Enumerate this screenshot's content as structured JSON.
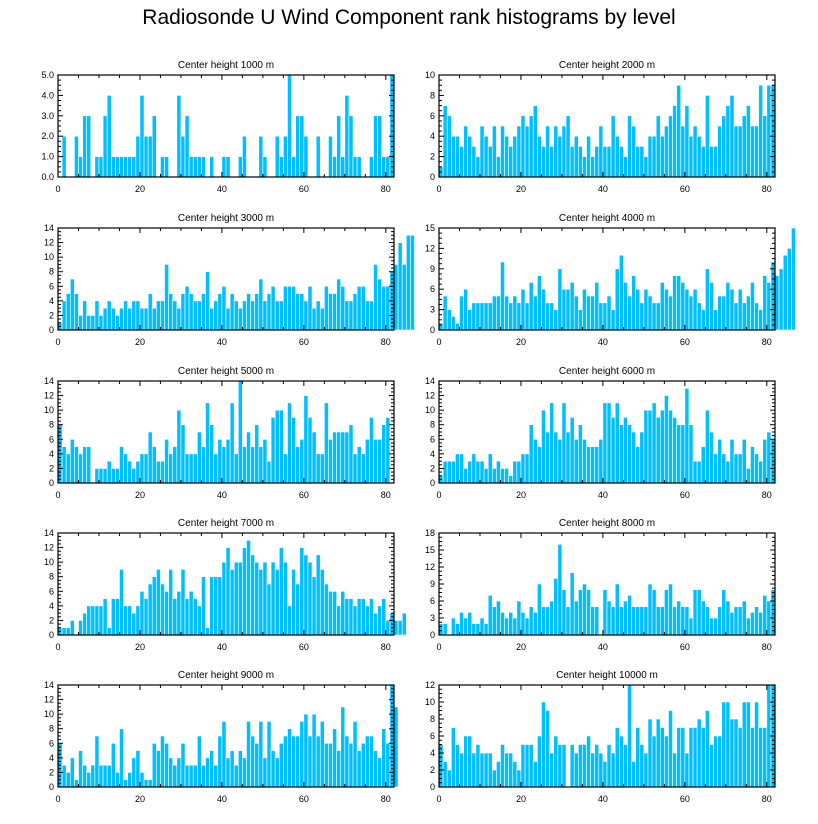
{
  "title": "Radiosonde U Wind Component rank histograms by level",
  "colors": {
    "bar": "#00bfff",
    "bar_edge": "#ffffff",
    "axis": "#000000"
  },
  "chart_data": [
    {
      "type": "bar",
      "title": "Center height 1000 m",
      "xlabel": "",
      "ylabel": "",
      "xlim": [
        0,
        82
      ],
      "ylim": [
        0,
        5
      ],
      "xticks": [
        0,
        20,
        40,
        60,
        80
      ],
      "yticks": [
        0,
        1,
        2,
        3,
        4,
        5
      ],
      "ytick_labels": [
        "0.0",
        "1.0",
        "2.0",
        "3.0",
        "4.0",
        "5.0"
      ],
      "values": [
        0,
        2,
        0,
        0,
        2,
        1,
        3,
        3,
        0,
        1,
        1,
        3,
        4,
        1,
        1,
        1,
        1,
        1,
        1,
        2,
        4,
        2,
        2,
        3,
        0,
        1,
        1,
        0,
        0,
        4,
        2,
        3,
        1,
        1,
        1,
        1,
        0,
        1,
        0,
        0,
        1,
        1,
        0,
        0,
        1,
        2,
        0,
        0,
        0,
        2,
        1,
        0,
        0,
        2,
        1,
        2,
        5,
        1,
        3,
        3,
        2,
        0,
        0,
        2,
        0,
        0,
        2,
        1,
        3,
        1,
        4,
        3,
        1,
        1,
        0,
        0,
        1,
        3,
        3,
        1,
        1,
        5
      ]
    },
    {
      "type": "bar",
      "title": "Center height 2000 m",
      "xlabel": "",
      "ylabel": "",
      "xlim": [
        0,
        82
      ],
      "ylim": [
        0,
        10
      ],
      "xticks": [
        0,
        20,
        40,
        60,
        80
      ],
      "yticks": [
        0,
        2,
        4,
        6,
        8,
        10
      ],
      "ytick_labels": [
        "0",
        "2",
        "4",
        "6",
        "8",
        "10"
      ],
      "values": [
        1,
        7,
        6,
        4,
        4,
        3,
        5,
        4,
        3,
        2,
        5,
        4,
        3,
        5,
        2,
        5,
        4,
        3,
        4,
        5,
        6,
        5,
        6,
        7,
        4,
        3,
        5,
        3,
        5,
        4,
        5,
        6,
        3,
        4,
        3,
        2,
        4,
        2,
        3,
        5,
        3,
        3,
        6,
        4,
        3,
        2,
        6,
        5,
        3,
        3,
        2,
        4,
        4,
        6,
        4,
        5,
        6,
        7,
        9,
        5,
        7,
        4,
        5,
        4,
        3,
        8,
        3,
        3,
        5,
        6,
        7,
        8,
        5,
        5,
        6,
        7,
        5,
        5,
        9,
        6,
        9,
        9
      ]
    },
    {
      "type": "bar",
      "title": "Center height 3000 m",
      "xlabel": "",
      "ylabel": "",
      "xlim": [
        0,
        82
      ],
      "ylim": [
        0,
        14
      ],
      "xticks": [
        0,
        20,
        40,
        60,
        80
      ],
      "yticks": [
        0,
        2,
        4,
        6,
        8,
        10,
        12,
        14
      ],
      "ytick_labels": [
        "0",
        "2",
        "4",
        "6",
        "8",
        "10",
        "12",
        "14"
      ],
      "values": [
        1,
        4,
        5,
        7,
        5,
        2,
        4,
        2,
        2,
        4,
        2,
        3,
        4,
        3,
        2,
        3,
        4,
        3,
        4,
        4,
        3,
        3,
        5,
        3,
        4,
        4,
        9,
        5,
        4,
        3,
        5,
        6,
        5,
        4,
        4,
        5,
        8,
        3,
        4,
        5,
        6,
        3,
        5,
        4,
        3,
        4,
        5,
        4,
        5,
        7,
        4,
        5,
        6,
        4,
        4,
        6,
        6,
        6,
        5,
        5,
        4,
        6,
        3,
        4,
        3,
        6,
        5,
        5,
        7,
        6,
        4,
        4,
        5,
        6,
        6,
        4,
        4,
        9,
        7,
        6,
        6,
        8,
        9,
        12,
        9,
        13,
        13
      ]
    },
    {
      "type": "bar",
      "title": "Center height 4000 m",
      "xlabel": "",
      "ylabel": "",
      "xlim": [
        0,
        82
      ],
      "ylim": [
        0,
        15
      ],
      "xticks": [
        0,
        20,
        40,
        60,
        80
      ],
      "yticks": [
        0,
        3,
        6,
        9,
        12,
        15
      ],
      "ytick_labels": [
        "0",
        "3",
        "6",
        "9",
        "12",
        "15"
      ],
      "values": [
        1,
        5,
        3,
        2,
        1,
        5,
        6,
        3,
        4,
        4,
        4,
        4,
        4,
        5,
        5,
        10,
        5,
        4,
        5,
        4,
        6,
        4,
        7,
        5,
        8,
        6,
        4,
        4,
        3,
        9,
        6,
        6,
        7,
        5,
        3,
        6,
        5,
        5,
        7,
        4,
        4,
        5,
        3,
        9,
        11,
        7,
        5,
        8,
        6,
        4,
        6,
        5,
        4,
        4,
        7,
        6,
        5,
        8,
        8,
        7,
        6,
        5,
        6,
        4,
        3,
        9,
        7,
        3,
        5,
        5,
        7,
        6,
        4,
        6,
        4,
        5,
        7,
        4,
        3,
        8,
        7,
        10,
        8,
        9,
        11,
        12,
        15
      ]
    },
    {
      "type": "bar",
      "title": "Center height 5000 m",
      "xlabel": "",
      "ylabel": "",
      "xlim": [
        0,
        82
      ],
      "ylim": [
        0,
        14
      ],
      "xticks": [
        0,
        20,
        40,
        60,
        80
      ],
      "yticks": [
        0,
        2,
        4,
        6,
        8,
        10,
        12,
        14
      ],
      "ytick_labels": [
        "0",
        "2",
        "4",
        "6",
        "8",
        "10",
        "12",
        "14"
      ],
      "values": [
        8,
        5,
        4,
        6,
        5,
        4,
        5,
        5,
        0,
        2,
        2,
        2,
        3,
        2,
        2,
        5,
        4,
        3,
        2,
        3,
        4,
        4,
        7,
        5,
        3,
        3,
        6,
        4,
        5,
        10,
        8,
        4,
        4,
        4,
        7,
        5,
        11,
        8,
        4,
        6,
        5,
        6,
        11,
        4,
        14,
        5,
        7,
        5,
        8,
        5,
        6,
        3,
        9,
        10,
        10,
        4,
        11,
        9,
        5,
        6,
        12,
        9,
        7,
        4,
        4,
        11,
        6,
        7,
        7,
        7,
        7,
        8,
        4,
        5,
        4,
        6,
        9,
        6,
        6,
        8,
        9
      ]
    },
    {
      "type": "bar",
      "title": "Center height 6000 m",
      "xlabel": "",
      "ylabel": "",
      "xlim": [
        0,
        82
      ],
      "ylim": [
        0,
        14
      ],
      "xticks": [
        0,
        20,
        40,
        60,
        80
      ],
      "yticks": [
        0,
        2,
        4,
        6,
        8,
        10,
        12,
        14
      ],
      "ytick_labels": [
        "0",
        "2",
        "4",
        "6",
        "8",
        "10",
        "12",
        "14"
      ],
      "values": [
        1,
        3,
        3,
        3,
        4,
        4,
        2,
        3,
        4,
        3,
        3,
        2,
        4,
        2,
        3,
        2,
        2,
        1,
        3,
        3,
        4,
        4,
        8,
        6,
        5,
        10,
        7,
        11,
        7,
        6,
        11,
        7,
        9,
        6,
        8,
        6,
        5,
        5,
        5,
        6,
        11,
        11,
        9,
        11,
        8,
        9,
        8,
        7,
        5,
        7,
        10,
        10,
        11,
        9,
        10,
        12,
        10,
        9,
        8,
        8,
        13,
        8,
        3,
        3,
        5,
        10,
        7,
        4,
        6,
        4,
        3,
        6,
        4,
        4,
        6,
        2,
        5,
        4,
        3,
        6,
        7,
        6
      ]
    },
    {
      "type": "bar",
      "title": "Center height 7000 m",
      "xlabel": "",
      "ylabel": "",
      "xlim": [
        0,
        82
      ],
      "ylim": [
        0,
        14
      ],
      "xticks": [
        0,
        20,
        40,
        60,
        80
      ],
      "yticks": [
        0,
        2,
        4,
        6,
        8,
        10,
        12,
        14
      ],
      "ytick_labels": [
        "0",
        "2",
        "4",
        "6",
        "8",
        "10",
        "12",
        "14"
      ],
      "values": [
        1,
        1,
        1,
        2,
        0,
        2,
        3,
        4,
        4,
        4,
        4,
        5,
        1,
        5,
        5,
        9,
        4,
        4,
        3,
        4,
        6,
        5,
        7,
        8,
        9,
        7,
        6,
        9,
        5,
        6,
        9,
        5,
        6,
        5,
        4,
        8,
        1,
        8,
        8,
        8,
        10,
        12,
        9,
        10,
        10,
        12,
        13,
        11,
        10,
        9,
        10,
        7,
        10,
        9,
        12,
        10,
        4,
        9,
        7,
        12,
        11,
        10,
        8,
        11,
        9,
        7,
        6,
        6,
        4,
        6,
        5,
        5,
        4,
        5,
        5,
        4,
        5,
        3,
        4,
        5,
        2,
        3,
        2,
        2,
        3
      ]
    },
    {
      "type": "bar",
      "title": "Center height 8000 m",
      "xlabel": "",
      "ylabel": "",
      "xlim": [
        0,
        82
      ],
      "ylim": [
        0,
        18
      ],
      "xticks": [
        0,
        20,
        40,
        60,
        80
      ],
      "yticks": [
        0,
        3,
        6,
        9,
        12,
        15,
        18
      ],
      "ytick_labels": [
        "0",
        "3",
        "6",
        "9",
        "12",
        "15",
        "18"
      ],
      "values": [
        2,
        2,
        0,
        3,
        2,
        4,
        3,
        4,
        2,
        2,
        3,
        2,
        7,
        5,
        6,
        4,
        3,
        4,
        3,
        6,
        4,
        3,
        5,
        4,
        9,
        5,
        5,
        6,
        10,
        16,
        8,
        5,
        11,
        6,
        8,
        9,
        8,
        5,
        5,
        0,
        8,
        6,
        5,
        9,
        5,
        6,
        7,
        5,
        5,
        5,
        5,
        9,
        8,
        5,
        5,
        8,
        9,
        5,
        6,
        5,
        5,
        3,
        8,
        8,
        6,
        5,
        3,
        3,
        5,
        8,
        6,
        4,
        5,
        5,
        6,
        3,
        4,
        5,
        4,
        7,
        6,
        8
      ]
    },
    {
      "type": "bar",
      "title": "Center height 9000 m",
      "xlabel": "",
      "ylabel": "",
      "xlim": [
        0,
        82
      ],
      "ylim": [
        0,
        14
      ],
      "xticks": [
        0,
        20,
        40,
        60,
        80
      ],
      "yticks": [
        0,
        2,
        4,
        6,
        8,
        10,
        12,
        14
      ],
      "ytick_labels": [
        "0",
        "2",
        "4",
        "6",
        "8",
        "10",
        "12",
        "14"
      ],
      "values": [
        6,
        3,
        2,
        4,
        1,
        5,
        3,
        2,
        3,
        7,
        3,
        3,
        3,
        6,
        2,
        8,
        1,
        2,
        4,
        5,
        2,
        1,
        1,
        6,
        5,
        7,
        6,
        4,
        3,
        4,
        6,
        3,
        3,
        3,
        7,
        3,
        4,
        5,
        3,
        7,
        9,
        4,
        5,
        3,
        5,
        4,
        9,
        7,
        6,
        9,
        4,
        9,
        5,
        4,
        6,
        7,
        8,
        7,
        7,
        9,
        10,
        7,
        10,
        7,
        9,
        6,
        6,
        8,
        5,
        11,
        7,
        6,
        9,
        5,
        6,
        7,
        7,
        5,
        4,
        8,
        6,
        14,
        11
      ]
    },
    {
      "type": "bar",
      "title": "Center height 10000 m",
      "xlabel": "",
      "ylabel": "",
      "xlim": [
        0,
        82
      ],
      "ylim": [
        0,
        12
      ],
      "xticks": [
        0,
        20,
        40,
        60,
        80
      ],
      "yticks": [
        0,
        2,
        4,
        6,
        8,
        10,
        12
      ],
      "ytick_labels": [
        "0",
        "2",
        "4",
        "6",
        "8",
        "10",
        "12"
      ],
      "values": [
        5,
        3,
        2,
        7,
        5,
        4,
        6,
        6,
        4,
        5,
        4,
        4,
        4,
        2,
        3,
        5,
        4,
        4,
        3,
        2,
        5,
        5,
        5,
        3,
        6,
        10,
        9,
        4,
        6,
        5,
        5,
        0,
        5,
        4,
        5,
        5,
        6,
        4,
        5,
        4,
        3,
        5,
        4,
        7,
        6,
        5,
        12,
        3,
        7,
        5,
        4,
        8,
        6,
        8,
        7,
        6,
        9,
        4,
        7,
        7,
        4,
        7,
        7,
        8,
        7,
        9,
        5,
        6,
        6,
        10,
        10,
        8,
        8,
        7,
        10,
        10,
        7,
        10,
        7,
        7,
        12,
        12
      ]
    }
  ]
}
